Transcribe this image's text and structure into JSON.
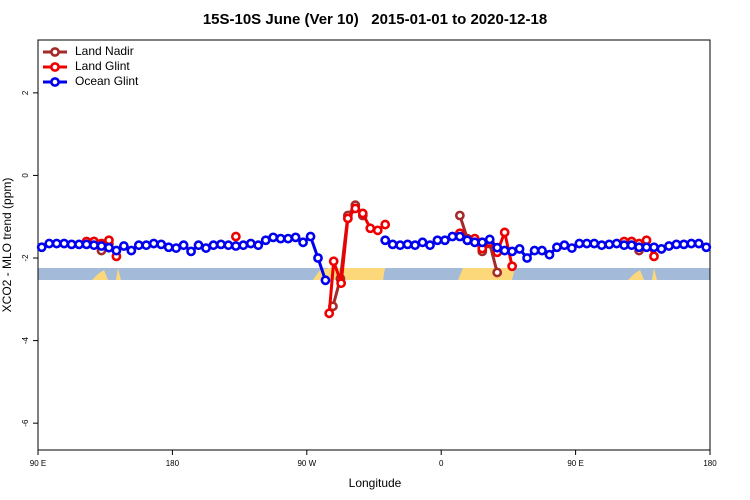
{
  "chart_data": {
    "type": "line",
    "title": "15S-10S June (Ver 10)   2015-01-01 to 2020-12-18",
    "xlabel": "Longitude",
    "ylabel": "XCO2 - MLO trend (ppm)",
    "xlim": [
      90,
      540
    ],
    "ylim": [
      -6.65,
      3.28
    ],
    "xticks": [
      {
        "value": 90,
        "label": "90 E"
      },
      {
        "value": 180,
        "label": "180"
      },
      {
        "value": 270,
        "label": "90 W"
      },
      {
        "value": 360,
        "label": "0"
      },
      {
        "value": 450,
        "label": "90 E"
      },
      {
        "value": 540,
        "label": "180"
      }
    ],
    "yticks": [
      -6,
      -4,
      -2,
      0,
      2
    ],
    "legend": "top-left",
    "series": [
      {
        "name": "Land Nadir",
        "color": "#a52a2a",
        "x": [
          127.5,
          132.5,
          137.5,
          200,
          287.5,
          292.5,
          297.5,
          302.5,
          307.5,
          340,
          372.5,
          377.5,
          382.5,
          387.5,
          392.5,
          397.5,
          440,
          487.5,
          492.5
        ],
        "values": [
          -1.6,
          -1.82,
          -1.65,
          null,
          -3.17,
          -2.5,
          -0.97,
          -0.72,
          -0.97,
          null,
          -0.97,
          -1.53,
          -1.57,
          -1.84,
          -1.65,
          -2.35,
          null,
          -1.6,
          -1.82
        ]
      },
      {
        "name": "Land Glint",
        "color": "#ee0000",
        "x": [
          122.5,
          127.5,
          132.5,
          137.5,
          142.5,
          180,
          222.5,
          250,
          285,
          288,
          293,
          297.5,
          302.5,
          307.5,
          312.5,
          317.5,
          322.5,
          350,
          372.5,
          377.5,
          382.5,
          387.5,
          392.5,
          397.5,
          402.5,
          407.5,
          450,
          482.5,
          487.5,
          492.5,
          497.5,
          502.5
        ],
        "values": [
          -1.6,
          -1.6,
          -1.65,
          -1.57,
          -1.96,
          null,
          -1.48,
          null,
          -3.34,
          -2.08,
          -2.61,
          -1.04,
          -0.8,
          -0.92,
          -1.28,
          -1.33,
          -1.19,
          null,
          -1.4,
          -1.57,
          -1.53,
          -1.77,
          -1.62,
          -1.86,
          -1.38,
          -2.2,
          null,
          -1.6,
          -1.6,
          -1.65,
          -1.57,
          -1.96
        ]
      },
      {
        "name": "Ocean Glint",
        "color": "#0000ee",
        "x": [
          92.5,
          97.5,
          102.5,
          107.5,
          112.5,
          117.5,
          122.5,
          127.5,
          132.5,
          137.5,
          142.5,
          147.5,
          152.5,
          157.5,
          162.5,
          167.5,
          172.5,
          177.5,
          182.5,
          187.5,
          192.5,
          197.5,
          202.5,
          207.5,
          212.5,
          217.5,
          222.5,
          227.5,
          232.5,
          237.5,
          242.5,
          247.5,
          252.5,
          257.5,
          262.5,
          267.5,
          272.5,
          277.5,
          282.5,
          287.5,
          292.5,
          297.5,
          302.5,
          307.5,
          312.5,
          317.5,
          322.5,
          327.5,
          332.5,
          337.5,
          342.5,
          347.5,
          352.5,
          357.5,
          362.5,
          367.5,
          372.5,
          377.5,
          382.5,
          387.5,
          392.5,
          397.5,
          402.5,
          407.5,
          412.5,
          417.5,
          422.5,
          427.5,
          432.5,
          437.5,
          442.5,
          447.5,
          452.5,
          457.5,
          462.5,
          467.5,
          472.5,
          477.5,
          482.5,
          487.5,
          492.5,
          497.5,
          502.5,
          507.5,
          512.5,
          517.5,
          522.5,
          527.5,
          532.5,
          537.5
        ],
        "values": [
          -1.74,
          -1.65,
          -1.65,
          -1.65,
          -1.67,
          -1.67,
          -1.67,
          -1.69,
          -1.71,
          -1.75,
          -1.82,
          -1.71,
          -1.82,
          -1.69,
          -1.69,
          -1.65,
          -1.67,
          -1.74,
          -1.76,
          -1.69,
          -1.84,
          -1.69,
          -1.76,
          -1.69,
          -1.67,
          -1.69,
          -1.71,
          -1.69,
          -1.65,
          -1.69,
          -1.57,
          -1.5,
          -1.53,
          -1.53,
          -1.5,
          -1.62,
          -1.48,
          -2.0,
          -2.54,
          null,
          null,
          null,
          null,
          null,
          null,
          null,
          -1.57,
          -1.67,
          -1.69,
          -1.67,
          -1.69,
          -1.62,
          -1.69,
          -1.57,
          -1.57,
          -1.48,
          -1.48,
          -1.57,
          -1.62,
          -1.62,
          -1.55,
          -1.75,
          -1.82,
          -1.84,
          -1.78,
          -2.0,
          -1.82,
          -1.82,
          -1.92,
          -1.74,
          -1.69,
          -1.76,
          -1.65,
          -1.65,
          -1.65,
          -1.69,
          -1.67,
          -1.65,
          -1.69,
          -1.69,
          -1.74,
          -1.74,
          -1.74,
          -1.78,
          -1.71,
          -1.67,
          -1.67,
          -1.65,
          -1.65,
          -1.74
        ]
      }
    ]
  }
}
